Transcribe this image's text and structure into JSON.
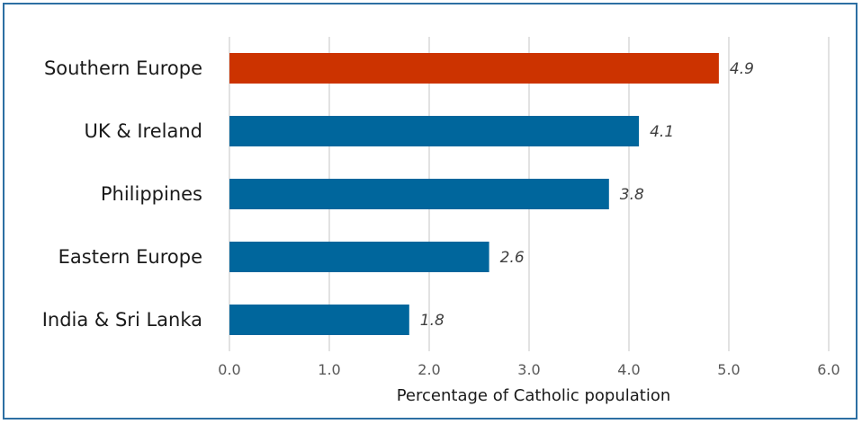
{
  "chart_data": {
    "type": "bar",
    "orientation": "horizontal",
    "categories": [
      "Southern Europe",
      "UK & Ireland",
      "Philippines",
      "Eastern Europe",
      "India & Sri Lanka"
    ],
    "values": [
      4.9,
      4.1,
      3.8,
      2.6,
      1.8
    ],
    "data_labels": [
      "4.9",
      "4.1",
      "3.8",
      "2.6",
      "1.8"
    ],
    "bar_colors": [
      "#cc3300",
      "#00669c",
      "#00669c",
      "#00669c",
      "#00669c"
    ],
    "xlabel": "Percentage of Catholic population",
    "ylabel": "",
    "title": "",
    "xlim": [
      0,
      6
    ],
    "x_ticks": [
      "0.0",
      "1.0",
      "2.0",
      "3.0",
      "4.0",
      "5.0",
      "6.0"
    ],
    "grid": "vertical",
    "legend": "none"
  },
  "colors": {
    "frame_border": "#2d6fa3",
    "gridline": "#d9d9d9",
    "highlight_bar": "#cc3300",
    "default_bar": "#00669c"
  }
}
